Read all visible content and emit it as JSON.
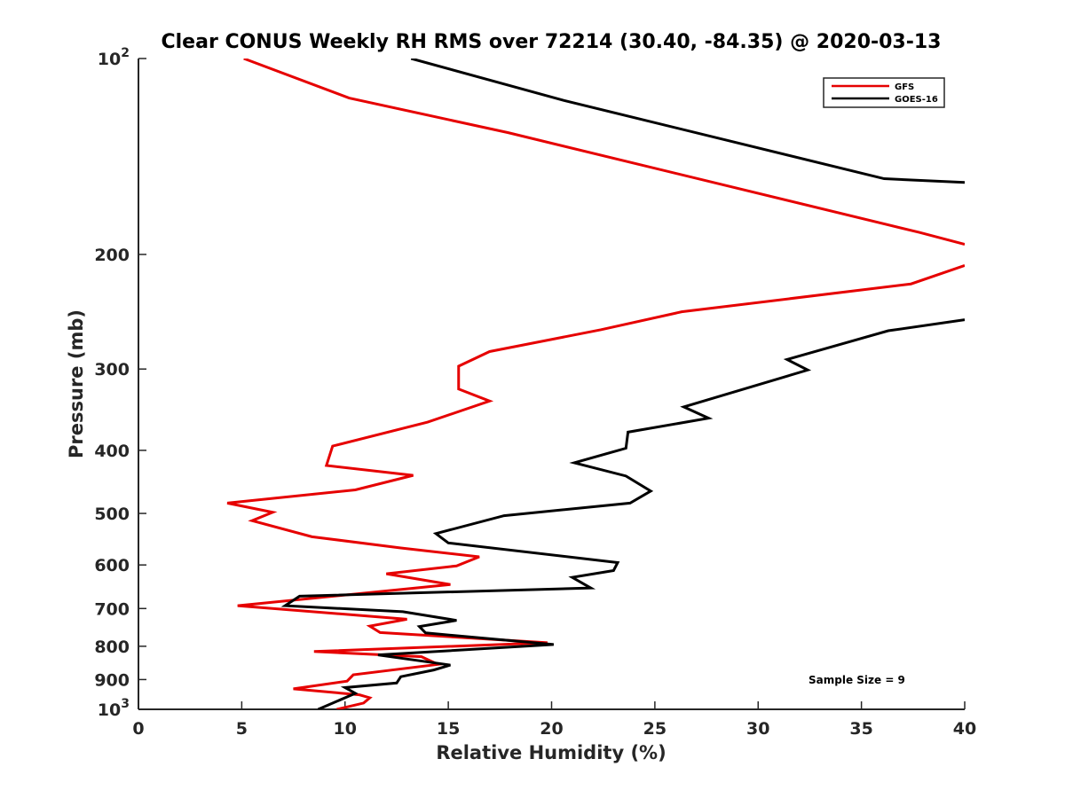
{
  "chart_data": {
    "type": "line",
    "title": "Clear CONUS Weekly RH RMS over 72214 (30.40, -84.35) @ 2020-03-13",
    "xlabel": "Relative Humidity (%)",
    "ylabel": "Pressure (mb)",
    "xlim": [
      0,
      40
    ],
    "ylim": [
      100,
      1000
    ],
    "yscale": "log",
    "y_reversed": true,
    "grid": false,
    "x_ticks": [
      0,
      5,
      10,
      15,
      20,
      25,
      30,
      35,
      40
    ],
    "x_tick_labels": [
      "0",
      "5",
      "10",
      "15",
      "20",
      "25",
      "30",
      "35",
      "40"
    ],
    "y_ticks": [
      100,
      200,
      300,
      400,
      500,
      600,
      700,
      800,
      900,
      1000
    ],
    "y_tick_labels": [
      {
        "base": "10",
        "exp": "2"
      },
      {
        "base": "200",
        "exp": ""
      },
      {
        "base": "300",
        "exp": ""
      },
      {
        "base": "400",
        "exp": ""
      },
      {
        "base": "500",
        "exp": ""
      },
      {
        "base": "600",
        "exp": ""
      },
      {
        "base": "700",
        "exp": ""
      },
      {
        "base": "800",
        "exp": ""
      },
      {
        "base": "900",
        "exp": ""
      },
      {
        "base": "10",
        "exp": "3"
      }
    ],
    "legend_position": "top-right",
    "annotation": "Sample Size = 9",
    "series": [
      {
        "name": "GFS",
        "color": "#e60000",
        "points": [
          [
            5.1,
            100
          ],
          [
            10.2,
            115
          ],
          [
            17.9,
            130
          ],
          [
            37.8,
            185
          ],
          [
            40,
            193
          ],
          [
            null,
            null
          ],
          [
            40,
            208
          ],
          [
            37.4,
            222
          ],
          [
            26.3,
            245
          ],
          [
            22.4,
            261
          ],
          [
            17.0,
            282
          ],
          [
            15.5,
            297
          ],
          [
            15.5,
            322
          ],
          [
            17.0,
            336
          ],
          [
            14.0,
            362
          ],
          [
            9.4,
            394
          ],
          [
            9.1,
            422
          ],
          [
            13.3,
            437
          ],
          [
            10.5,
            460
          ],
          [
            4.3,
            482
          ],
          [
            6.5,
            498
          ],
          [
            5.5,
            513
          ],
          [
            8.4,
            543
          ],
          [
            12.7,
            565
          ],
          [
            16.5,
            583
          ],
          [
            15.4,
            602
          ],
          [
            12.0,
            619
          ],
          [
            15.1,
            643
          ],
          [
            4.8,
            693
          ],
          [
            13.0,
            727
          ],
          [
            11.2,
            745
          ],
          [
            11.7,
            762
          ],
          [
            19.8,
            790
          ],
          [
            8.5,
            815
          ],
          [
            13.7,
            830
          ],
          [
            14.5,
            853
          ],
          [
            10.4,
            885
          ],
          [
            10.1,
            905
          ],
          [
            7.5,
            930
          ],
          [
            10.7,
            950
          ],
          [
            11.2,
            960
          ],
          [
            10.9,
            978
          ],
          [
            9.6,
            1000
          ]
        ]
      },
      {
        "name": "GOES-16",
        "color": "#000000",
        "points": [
          [
            13.2,
            100
          ],
          [
            20.6,
            116
          ],
          [
            36.1,
            153
          ],
          [
            40,
            155
          ],
          [
            null,
            null
          ],
          [
            40,
            252
          ],
          [
            36.3,
            262
          ],
          [
            31.4,
            290
          ],
          [
            32.4,
            301
          ],
          [
            26.4,
            343
          ],
          [
            27.6,
            357
          ],
          [
            23.7,
            375
          ],
          [
            23.6,
            397
          ],
          [
            21.1,
            418
          ],
          [
            23.6,
            438
          ],
          [
            24.8,
            462
          ],
          [
            23.8,
            482
          ],
          [
            17.7,
            504
          ],
          [
            14.4,
            537
          ],
          [
            15.0,
            555
          ],
          [
            23.2,
            595
          ],
          [
            23.0,
            612
          ],
          [
            21.0,
            627
          ],
          [
            21.9,
            651
          ],
          [
            7.8,
            670
          ],
          [
            7.1,
            693
          ],
          [
            12.8,
            708
          ],
          [
            15.4,
            730
          ],
          [
            13.6,
            746
          ],
          [
            13.9,
            763
          ],
          [
            20.1,
            795
          ],
          [
            11.6,
            825
          ],
          [
            15.1,
            855
          ],
          [
            14.3,
            870
          ],
          [
            12.7,
            891
          ],
          [
            12.5,
            911
          ],
          [
            10.0,
            926
          ],
          [
            10.5,
            945
          ],
          [
            8.7,
            1000
          ]
        ]
      }
    ]
  }
}
